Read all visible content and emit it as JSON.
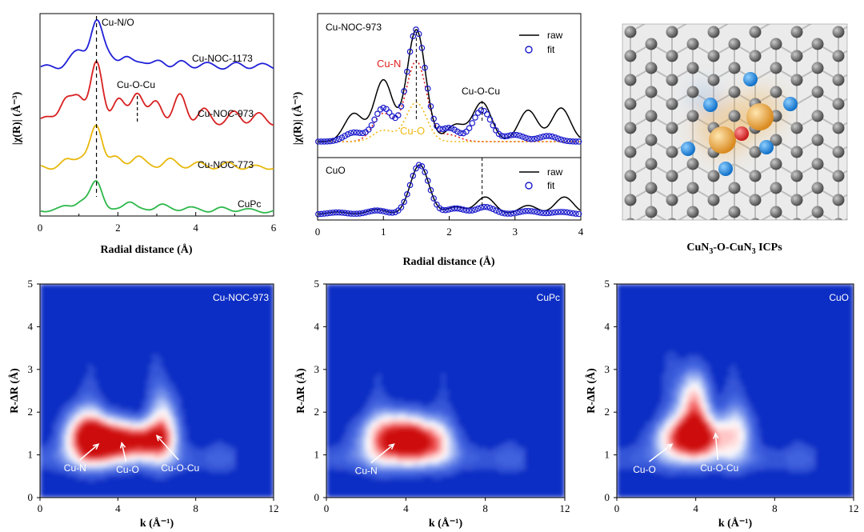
{
  "chart_data": [
    {
      "id": "ft_stack",
      "type": "line",
      "xlabel": "Radial distance (Å)",
      "ylabel": "|χ(R)| (Å⁻³)",
      "xlim": [
        0,
        6
      ],
      "xticks": [
        "0",
        "2",
        "4",
        "6"
      ],
      "annotations": [
        "Cu-N/O",
        "Cu-O-Cu"
      ],
      "dashed_lines_x": [
        1.45,
        2.5
      ],
      "series": [
        {
          "name": "Cu-NOC-1173",
          "color": "#2020d8",
          "peaks": [
            [
              0.8,
              0.15
            ],
            [
              1.05,
              0.3
            ],
            [
              1.45,
              1.0
            ],
            [
              1.8,
              0.25
            ],
            [
              2.2,
              0.18
            ],
            [
              2.6,
              0.15
            ],
            [
              3.1,
              0.12
            ],
            [
              3.6,
              0.1
            ],
            [
              4.2,
              0.08
            ],
            [
              5.0,
              0.06
            ],
            [
              5.6,
              0.05
            ]
          ]
        },
        {
          "name": "Cu-NOC-973",
          "color": "#d82020",
          "peaks": [
            [
              0.3,
              0.1
            ],
            [
              0.65,
              0.35
            ],
            [
              1.0,
              0.45
            ],
            [
              1.45,
              1.0
            ],
            [
              2.0,
              0.4
            ],
            [
              2.5,
              0.55
            ],
            [
              3.0,
              0.35
            ],
            [
              3.6,
              0.45
            ],
            [
              4.2,
              0.2
            ],
            [
              5.0,
              0.15
            ],
            [
              5.6,
              0.12
            ]
          ]
        },
        {
          "name": "Cu-NOC-773",
          "color": "#e8b80c",
          "peaks": [
            [
              0.7,
              0.15
            ],
            [
              1.05,
              0.25
            ],
            [
              1.45,
              1.0
            ],
            [
              1.9,
              0.25
            ],
            [
              2.5,
              0.3
            ],
            [
              3.3,
              0.2
            ],
            [
              4.0,
              0.1
            ],
            [
              4.8,
              0.08
            ]
          ]
        },
        {
          "name": "CuPc",
          "color": "#2db84a",
          "peaks": [
            [
              0.3,
              0.05
            ],
            [
              0.7,
              0.15
            ],
            [
              1.05,
              0.3
            ],
            [
              1.45,
              1.0
            ],
            [
              2.3,
              0.35
            ],
            [
              3.1,
              0.25
            ],
            [
              3.8,
              0.15
            ],
            [
              4.6,
              0.1
            ],
            [
              5.2,
              0.07
            ]
          ]
        }
      ]
    },
    {
      "id": "fit_noc973",
      "type": "line",
      "sample": "Cu-NOC-973",
      "xlim": [
        0,
        4
      ],
      "xticks": [
        "0",
        "1",
        "2",
        "3",
        "4"
      ],
      "xlabel": "Radial distance (Å)",
      "ylabel": "|χ(R)| (Å⁻³)",
      "legend": [
        "raw",
        "fit"
      ],
      "path_labels": [
        "Cu-N",
        "Cu-O",
        "Cu-O-Cu"
      ],
      "dashed_lines_x": [
        1.5,
        2.5
      ],
      "raw_peaks": [
        [
          0.55,
          0.25
        ],
        [
          1.0,
          0.55
        ],
        [
          1.5,
          1.0
        ],
        [
          2.1,
          0.15
        ],
        [
          2.5,
          0.35
        ],
        [
          3.2,
          0.28
        ],
        [
          3.7,
          0.3
        ]
      ],
      "fit_peaks": [
        [
          0.55,
          0.08
        ],
        [
          1.0,
          0.3
        ],
        [
          1.5,
          1.0
        ],
        [
          2.0,
          0.12
        ],
        [
          2.5,
          0.28
        ],
        [
          3.0,
          0.06
        ],
        [
          3.5,
          0.05
        ]
      ],
      "cu_n_peaks": [
        [
          1.0,
          0.25
        ],
        [
          1.5,
          0.72
        ],
        [
          2.0,
          0.06
        ]
      ],
      "cu_o_peaks": [
        [
          1.0,
          0.1
        ],
        [
          1.5,
          0.35
        ]
      ],
      "colors": {
        "raw": "#000000",
        "fit": "#1a1acc",
        "cu_n": "#e02020",
        "cu_o": "#f0b814"
      }
    },
    {
      "id": "fit_cuo",
      "type": "line",
      "sample": "CuO",
      "xlim": [
        0,
        4
      ],
      "legend": [
        "raw",
        "fit"
      ],
      "dashed_lines_x": [
        2.5
      ],
      "raw_peaks": [
        [
          0.3,
          0.05
        ],
        [
          0.9,
          0.1
        ],
        [
          1.55,
          1.0
        ],
        [
          2.1,
          0.15
        ],
        [
          2.55,
          0.35
        ],
        [
          3.2,
          0.18
        ],
        [
          3.75,
          0.35
        ]
      ],
      "fit_peaks": [
        [
          0.3,
          0.04
        ],
        [
          0.9,
          0.08
        ],
        [
          1.55,
          1.0
        ],
        [
          2.1,
          0.12
        ],
        [
          2.55,
          0.15
        ],
        [
          3.2,
          0.07
        ],
        [
          3.7,
          0.05
        ]
      ]
    },
    {
      "id": "wt_noc973",
      "type": "heatmap",
      "label": "Cu-NOC-973",
      "xlabel": "k (Å⁻¹)",
      "ylabel": "R-ΔR (Å)",
      "xlim": [
        0,
        12
      ],
      "ylim": [
        0,
        5
      ],
      "xticks": [
        "0",
        "4",
        "8",
        "12"
      ],
      "yticks": [
        "0",
        "1",
        "2",
        "3",
        "4",
        "5"
      ],
      "blobs": [
        {
          "k": 3.2,
          "r": 1.35,
          "sk": 1.1,
          "sr": 0.38,
          "a": 1.0
        },
        {
          "k": 5.3,
          "r": 1.35,
          "sk": 1.0,
          "sr": 0.3,
          "a": 0.75
        },
        {
          "k": 6.4,
          "r": 1.7,
          "sk": 0.55,
          "sr": 0.6,
          "a": 0.55
        },
        {
          "k": 2.2,
          "r": 1.55,
          "sk": 0.8,
          "sr": 0.5,
          "a": 0.45
        }
      ],
      "annotations": [
        {
          "text": "Cu-N",
          "k": 1.8,
          "r": 0.62,
          "tk": 3.0,
          "tr": 1.25
        },
        {
          "text": "Cu-O",
          "k": 4.5,
          "r": 0.58,
          "tk": 4.2,
          "tr": 1.28
        },
        {
          "text": "Cu-O-Cu",
          "k": 7.2,
          "r": 0.62,
          "tk": 6.0,
          "tr": 1.45
        }
      ]
    },
    {
      "id": "wt_cupc",
      "type": "heatmap",
      "label": "CuPc",
      "xlabel": "k (Å⁻¹)",
      "ylabel": "R-ΔR (Å)",
      "xlim": [
        0,
        12
      ],
      "ylim": [
        0,
        5
      ],
      "xticks": [
        "0",
        "4",
        "8",
        "12"
      ],
      "yticks": [
        "0",
        "1",
        "2",
        "3",
        "4",
        "5"
      ],
      "blobs": [
        {
          "k": 3.6,
          "r": 1.4,
          "sk": 1.3,
          "sr": 0.42,
          "a": 1.0
        },
        {
          "k": 5.2,
          "r": 1.3,
          "sk": 1.0,
          "sr": 0.35,
          "a": 0.45
        }
      ],
      "annotations": [
        {
          "text": "Cu-N",
          "k": 2.0,
          "r": 0.55,
          "tk": 3.4,
          "tr": 1.25
        }
      ]
    },
    {
      "id": "wt_cuo",
      "type": "heatmap",
      "label": "CuO",
      "xlabel": "k (Å⁻¹)",
      "ylabel": "R-ΔR (Å)",
      "xlim": [
        0,
        12
      ],
      "ylim": [
        0,
        5
      ],
      "xticks": [
        "0",
        "4",
        "8",
        "12"
      ],
      "yticks": [
        "0",
        "1",
        "2",
        "3",
        "4",
        "5"
      ],
      "blobs": [
        {
          "k": 3.9,
          "r": 1.4,
          "sk": 1.3,
          "sr": 0.35,
          "a": 1.0
        },
        {
          "k": 3.9,
          "r": 2.2,
          "sk": 0.6,
          "sr": 0.6,
          "a": 0.75
        },
        {
          "k": 6.2,
          "r": 1.6,
          "sk": 0.6,
          "sr": 0.5,
          "a": 0.35
        }
      ],
      "annotations": [
        {
          "text": "Cu-O",
          "k": 1.4,
          "r": 0.58,
          "tk": 2.8,
          "tr": 1.25
        },
        {
          "text": "Cu-O-Cu",
          "k": 5.2,
          "r": 0.62,
          "tk": 5.0,
          "tr": 1.5
        }
      ]
    }
  ],
  "structure": {
    "caption": "CuN₃-O-CuN₃ ICPs",
    "caption_main": "CuN",
    "caption_sub1": "3",
    "caption_mid": "-O-CuN",
    "caption_sub2": "3",
    "caption_tail": " ICPs",
    "colors": {
      "carbon": "#6e6e6e",
      "nitrogen": "#1e8ae6",
      "copper": "#f2a83a",
      "oxygen": "#e83030"
    }
  }
}
